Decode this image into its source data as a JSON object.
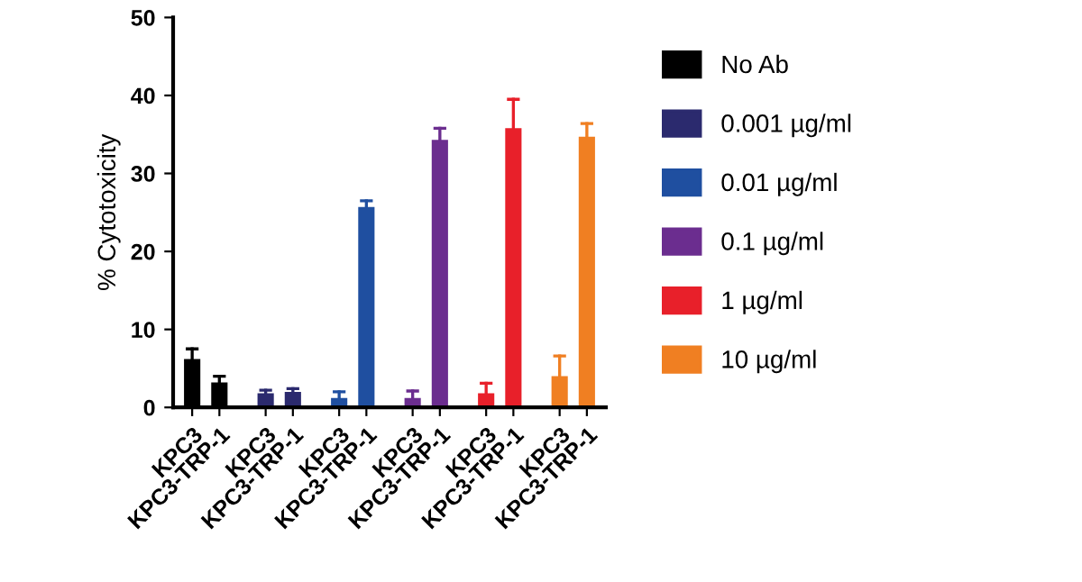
{
  "chart_data": {
    "type": "bar",
    "ylabel": "% Cytotoxicity",
    "categories": [
      "KPC3",
      "KPC3-TRP-1",
      "KPC3",
      "KPC3-TRP-1",
      "KPC3",
      "KPC3-TRP-1",
      "KPC3",
      "KPC3-TRP-1",
      "KPC3",
      "KPC3-TRP-1",
      "KPC3",
      "KPC3-TRP-1"
    ],
    "series": [
      {
        "name": "No Ab",
        "color": "#000000",
        "values": [
          6.2,
          3.2,
          null,
          null,
          null,
          null,
          null,
          null,
          null,
          null,
          null,
          null
        ],
        "errors": [
          [
            6.2,
            7.5
          ],
          [
            3.2,
            4.0
          ],
          null,
          null,
          null,
          null,
          null,
          null,
          null,
          null,
          null,
          null
        ]
      },
      {
        "name": "0.001 µg/ml",
        "color": "#2b2a6e",
        "values": [
          null,
          null,
          1.8,
          2.0,
          null,
          null,
          null,
          null,
          null,
          null,
          null,
          null
        ],
        "errors": [
          null,
          null,
          [
            1.8,
            2.2
          ],
          [
            2.0,
            2.4
          ],
          null,
          null,
          null,
          null,
          null,
          null,
          null,
          null
        ]
      },
      {
        "name": "0.01 µg/ml",
        "color": "#1f4fa0",
        "values": [
          null,
          null,
          null,
          null,
          1.2,
          25.7,
          null,
          null,
          null,
          null,
          null,
          null
        ],
        "errors": [
          null,
          null,
          null,
          null,
          [
            1.2,
            2.0
          ],
          [
            25.7,
            26.5
          ],
          null,
          null,
          null,
          null,
          null,
          null
        ]
      },
      {
        "name": "0.1 µg/ml",
        "color": "#6b2d8f",
        "values": [
          null,
          null,
          null,
          null,
          null,
          null,
          1.2,
          34.3,
          null,
          null,
          null,
          null
        ],
        "errors": [
          null,
          null,
          null,
          null,
          null,
          null,
          [
            1.2,
            2.1
          ],
          [
            34.3,
            35.8
          ],
          null,
          null,
          null,
          null
        ]
      },
      {
        "name": "1 µg/ml",
        "color": "#e8202a",
        "values": [
          null,
          null,
          null,
          null,
          null,
          null,
          null,
          null,
          1.8,
          35.8,
          null,
          null
        ],
        "errors": [
          null,
          null,
          null,
          null,
          null,
          null,
          null,
          null,
          [
            1.8,
            3.1
          ],
          [
            35.8,
            39.5
          ],
          null,
          null
        ]
      },
      {
        "name": "10 µg/ml",
        "color": "#f07f22",
        "values": [
          null,
          null,
          null,
          null,
          null,
          null,
          null,
          null,
          null,
          null,
          4.0,
          34.7
        ],
        "errors": [
          null,
          null,
          null,
          null,
          null,
          null,
          null,
          null,
          null,
          null,
          [
            4.0,
            6.6
          ],
          [
            34.7,
            36.4
          ]
        ]
      }
    ],
    "ylim": [
      0,
      50
    ],
    "yticks": [
      0,
      10,
      20,
      30,
      40,
      50
    ],
    "grid": false,
    "legend": "right"
  }
}
